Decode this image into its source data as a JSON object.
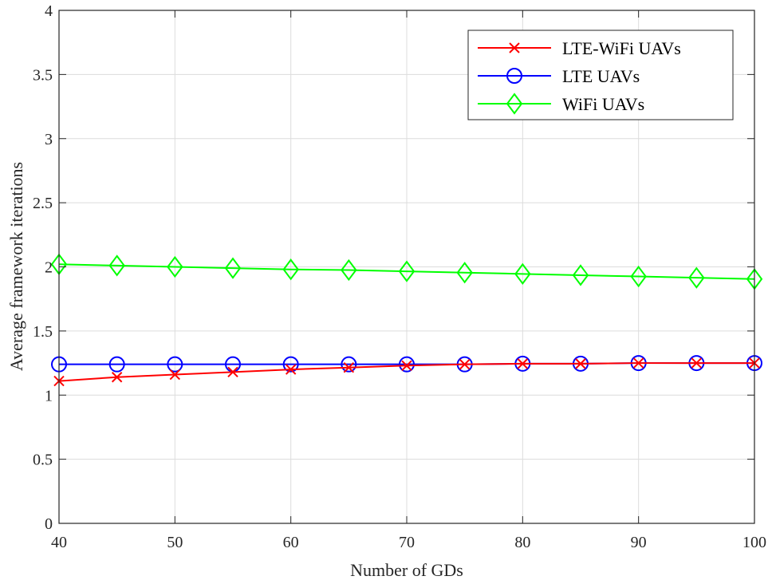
{
  "chart_data": {
    "type": "line",
    "title": "",
    "xlabel": "Number of GDs",
    "ylabel": "Average framework iterations",
    "xlim": [
      40,
      100
    ],
    "ylim": [
      0,
      4
    ],
    "xticks": [
      40,
      50,
      60,
      70,
      80,
      90,
      100
    ],
    "yticks": [
      0,
      0.5,
      1,
      1.5,
      2,
      2.5,
      3,
      3.5,
      4
    ],
    "ytick_labels": [
      "0",
      "0.5",
      "1",
      "1.5",
      "2",
      "2.5",
      "3",
      "3.5",
      "4"
    ],
    "grid": true,
    "legend_position": "top-right",
    "x": [
      40,
      45,
      50,
      55,
      60,
      65,
      70,
      75,
      80,
      85,
      90,
      95,
      100
    ],
    "series": [
      {
        "name": "LTE-WiFi UAVs",
        "color": "#ff0000",
        "marker": "x",
        "values": [
          1.11,
          1.14,
          1.16,
          1.18,
          1.2,
          1.215,
          1.23,
          1.24,
          1.245,
          1.245,
          1.25,
          1.25,
          1.25
        ]
      },
      {
        "name": "LTE UAVs",
        "color": "#0000ff",
        "marker": "circle",
        "values": [
          1.24,
          1.24,
          1.24,
          1.24,
          1.24,
          1.24,
          1.24,
          1.24,
          1.245,
          1.245,
          1.25,
          1.25,
          1.25
        ]
      },
      {
        "name": "WiFi UAVs",
        "color": "#00ff00",
        "marker": "diamond",
        "values": [
          2.02,
          2.01,
          2.0,
          1.99,
          1.98,
          1.975,
          1.965,
          1.955,
          1.945,
          1.935,
          1.925,
          1.915,
          1.905
        ]
      }
    ]
  }
}
